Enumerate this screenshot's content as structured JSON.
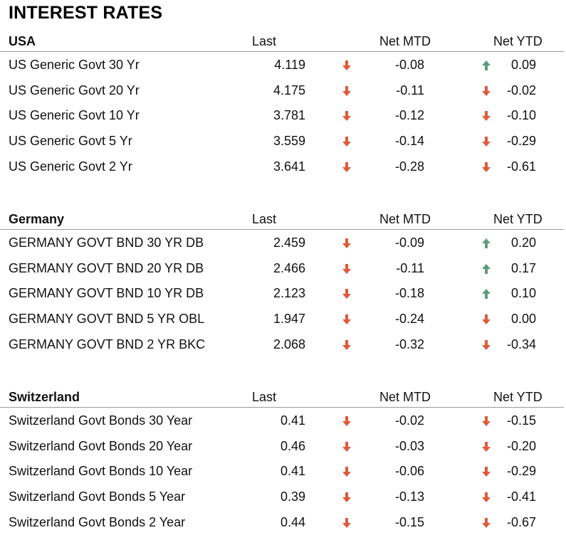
{
  "title": "INTEREST RATES",
  "colors": {
    "down": "#e0593a",
    "up": "#5e9a80"
  },
  "sections": [
    {
      "name": "USA",
      "headers": {
        "last": "Last",
        "mtd": "Net MTD",
        "ytd": "Net YTD"
      },
      "rows": [
        {
          "name": "US Generic Govt 30 Yr",
          "last": "4.119",
          "mtd": "-0.08",
          "mtd_dir": "down",
          "ytd": "0.09",
          "ytd_dir": "up"
        },
        {
          "name": "US Generic Govt 20 Yr",
          "last": "4.175",
          "mtd": "-0.11",
          "mtd_dir": "down",
          "ytd": "-0.02",
          "ytd_dir": "down"
        },
        {
          "name": "US Generic Govt 10 Yr",
          "last": "3.781",
          "mtd": "-0.12",
          "mtd_dir": "down",
          "ytd": "-0.10",
          "ytd_dir": "down"
        },
        {
          "name": "US Generic Govt 5 Yr",
          "last": "3.559",
          "mtd": "-0.14",
          "mtd_dir": "down",
          "ytd": "-0.29",
          "ytd_dir": "down"
        },
        {
          "name": "US Generic Govt 2 Yr",
          "last": "3.641",
          "mtd": "-0.28",
          "mtd_dir": "down",
          "ytd": "-0.61",
          "ytd_dir": "down"
        }
      ]
    },
    {
      "name": "Germany",
      "headers": {
        "last": "Last",
        "mtd": "Net MTD",
        "ytd": "Net YTD"
      },
      "rows": [
        {
          "name": "GERMANY GOVT BND 30 YR DB",
          "last": "2.459",
          "mtd": "-0.09",
          "mtd_dir": "down",
          "ytd": "0.20",
          "ytd_dir": "up"
        },
        {
          "name": "GERMANY GOVT BND 20 YR DB",
          "last": "2.466",
          "mtd": "-0.11",
          "mtd_dir": "down",
          "ytd": "0.17",
          "ytd_dir": "up"
        },
        {
          "name": "GERMANY GOVT BND 10 YR DB",
          "last": "2.123",
          "mtd": "-0.18",
          "mtd_dir": "down",
          "ytd": "0.10",
          "ytd_dir": "up"
        },
        {
          "name": "GERMANY GOVT BND 5 YR OBL",
          "last": "1.947",
          "mtd": "-0.24",
          "mtd_dir": "down",
          "ytd": "0.00",
          "ytd_dir": "down"
        },
        {
          "name": "GERMANY GOVT BND 2 YR BKC",
          "last": "2.068",
          "mtd": "-0.32",
          "mtd_dir": "down",
          "ytd": "-0.34",
          "ytd_dir": "down"
        }
      ]
    },
    {
      "name": "Switzerland",
      "headers": {
        "last": "Last",
        "mtd": "Net MTD",
        "ytd": "Net YTD"
      },
      "rows": [
        {
          "name": "Switzerland Govt Bonds 30 Year",
          "last": "0.41",
          "mtd": "-0.02",
          "mtd_dir": "down",
          "ytd": "-0.15",
          "ytd_dir": "down"
        },
        {
          "name": "Switzerland Govt Bonds 20 Year",
          "last": "0.46",
          "mtd": "-0.03",
          "mtd_dir": "down",
          "ytd": "-0.20",
          "ytd_dir": "down"
        },
        {
          "name": "Switzerland Govt Bonds 10 Year",
          "last": "0.41",
          "mtd": "-0.06",
          "mtd_dir": "down",
          "ytd": "-0.29",
          "ytd_dir": "down"
        },
        {
          "name": "Switzerland Govt Bonds 5 Year",
          "last": "0.39",
          "mtd": "-0.13",
          "mtd_dir": "down",
          "ytd": "-0.41",
          "ytd_dir": "down"
        },
        {
          "name": "Switzerland Govt Bonds 2 Year",
          "last": "0.44",
          "mtd": "-0.15",
          "mtd_dir": "down",
          "ytd": "-0.67",
          "ytd_dir": "down"
        }
      ]
    }
  ]
}
